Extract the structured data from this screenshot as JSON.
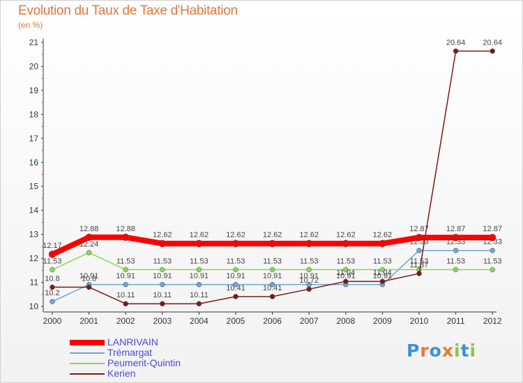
{
  "title": "Evolution du Taux de Taxe d'Habitation",
  "subtitle": "(en %)",
  "logo": {
    "text": "Proxiti",
    "letters": [
      "P",
      "r",
      "o",
      "x",
      "i",
      "t",
      "i"
    ],
    "colors": [
      "#3d8fd6",
      "#e8782e",
      "#3d8fd6",
      "#e8782e",
      "#8cc63f",
      "#3d8fd6",
      "#8cc63f"
    ]
  },
  "chart_data": {
    "type": "line",
    "x": [
      "2000",
      "2001",
      "2002",
      "2003",
      "2004",
      "2005",
      "2006",
      "2007",
      "2008",
      "2009",
      "2010",
      "2011",
      "2012"
    ],
    "ylim": [
      10,
      21
    ],
    "yticks": [
      "10",
      "11",
      "12",
      "13",
      "14",
      "15",
      "16",
      "17",
      "18",
      "19",
      "20",
      "21"
    ],
    "grid": false,
    "legend_position": "bottom-left",
    "series": [
      {
        "name": "LANRIVAIN",
        "color": "#ff0000",
        "width": 8,
        "values": [
          12.17,
          12.88,
          12.88,
          12.62,
          12.62,
          12.62,
          12.62,
          12.62,
          12.62,
          12.62,
          12.87,
          12.87,
          12.87
        ],
        "labels": [
          "12.17",
          "12.88",
          "12.88",
          "12.62",
          "12.62",
          "12.62",
          "12.62",
          "12.62",
          "12.62",
          "12.62",
          "12.87",
          "12.87",
          "12.87"
        ]
      },
      {
        "name": "Trémargat",
        "color": "#6fa5d3",
        "width": 1.5,
        "values": [
          10.2,
          10.91,
          10.91,
          10.91,
          10.91,
          10.91,
          10.91,
          10.91,
          10.91,
          10.91,
          12.33,
          12.33,
          12.33
        ],
        "labels": [
          "10.2",
          "10.91",
          "10.91",
          "10.91",
          "10.91",
          "10.91",
          "10.91",
          "10.91",
          "10.91",
          "10.91",
          "12.33",
          "12.33",
          "12.33"
        ]
      },
      {
        "name": "Peumerit-Quintin",
        "color": "#8ed45a",
        "width": 1.5,
        "values": [
          11.53,
          12.24,
          11.53,
          11.53,
          11.53,
          11.53,
          11.53,
          11.53,
          11.53,
          11.53,
          11.53,
          11.53,
          11.53
        ],
        "labels": [
          "11.53",
          "12.24",
          "11.53",
          "11.53",
          "11.53",
          "11.53",
          "11.53",
          "11.53",
          "11.53",
          "11.53",
          "11.53",
          "11.53",
          "11.53"
        ]
      },
      {
        "name": "Kerien",
        "color": "#7a1a1a",
        "width": 1.5,
        "values": [
          10.8,
          10.8,
          10.11,
          10.11,
          10.11,
          10.41,
          10.41,
          10.72,
          11.04,
          11.04,
          11.37,
          20.64,
          20.64
        ],
        "labels": [
          "10.8",
          "10.8",
          "10.11",
          "10.11",
          "10.11",
          "10.41",
          "10.41",
          "10.72",
          "11.04",
          "11.04",
          "11.37",
          "20.64",
          "20.64"
        ]
      }
    ]
  }
}
